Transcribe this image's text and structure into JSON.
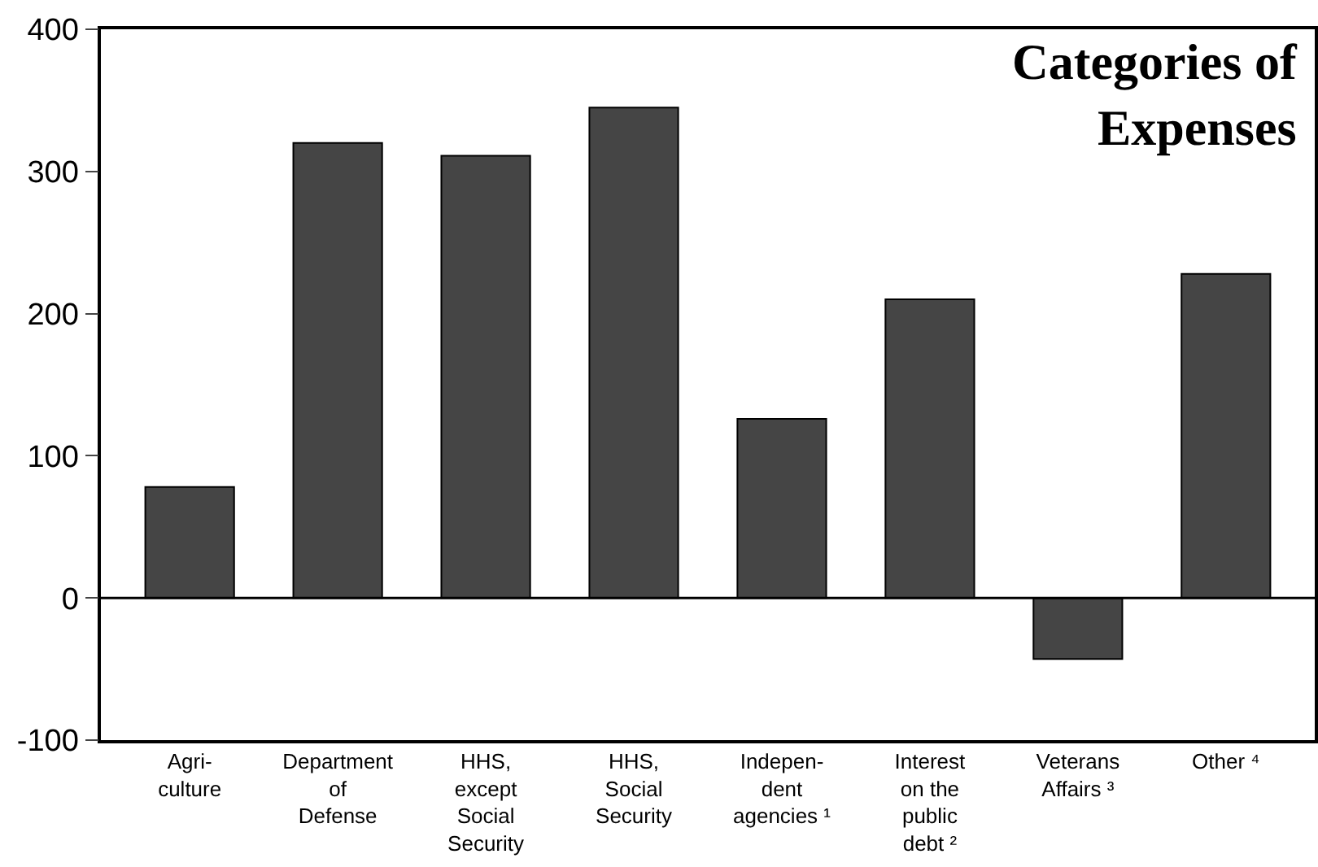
{
  "chart_data": {
    "type": "bar",
    "title": "Categories of\nExpenses",
    "categories": [
      "Agri-\nculture",
      "Department\nof\nDefense",
      "HHS,\nexcept\nSocial\nSecurity",
      "HHS,\nSocial\nSecurity",
      "Indepen-\ndent\nagencies ¹",
      "Interest\non the\npublic\ndebt ²",
      "Veterans\nAffairs ³",
      "Other ⁴"
    ],
    "values": [
      78,
      320,
      311,
      345,
      126,
      210,
      -43,
      228
    ],
    "color": "#454545",
    "ylim": [
      -100,
      400
    ],
    "yticks": [
      -100,
      0,
      100,
      200,
      300,
      400
    ],
    "ref_lines": [
      {
        "axis": "y",
        "value": 0,
        "color": "#000000"
      }
    ]
  }
}
